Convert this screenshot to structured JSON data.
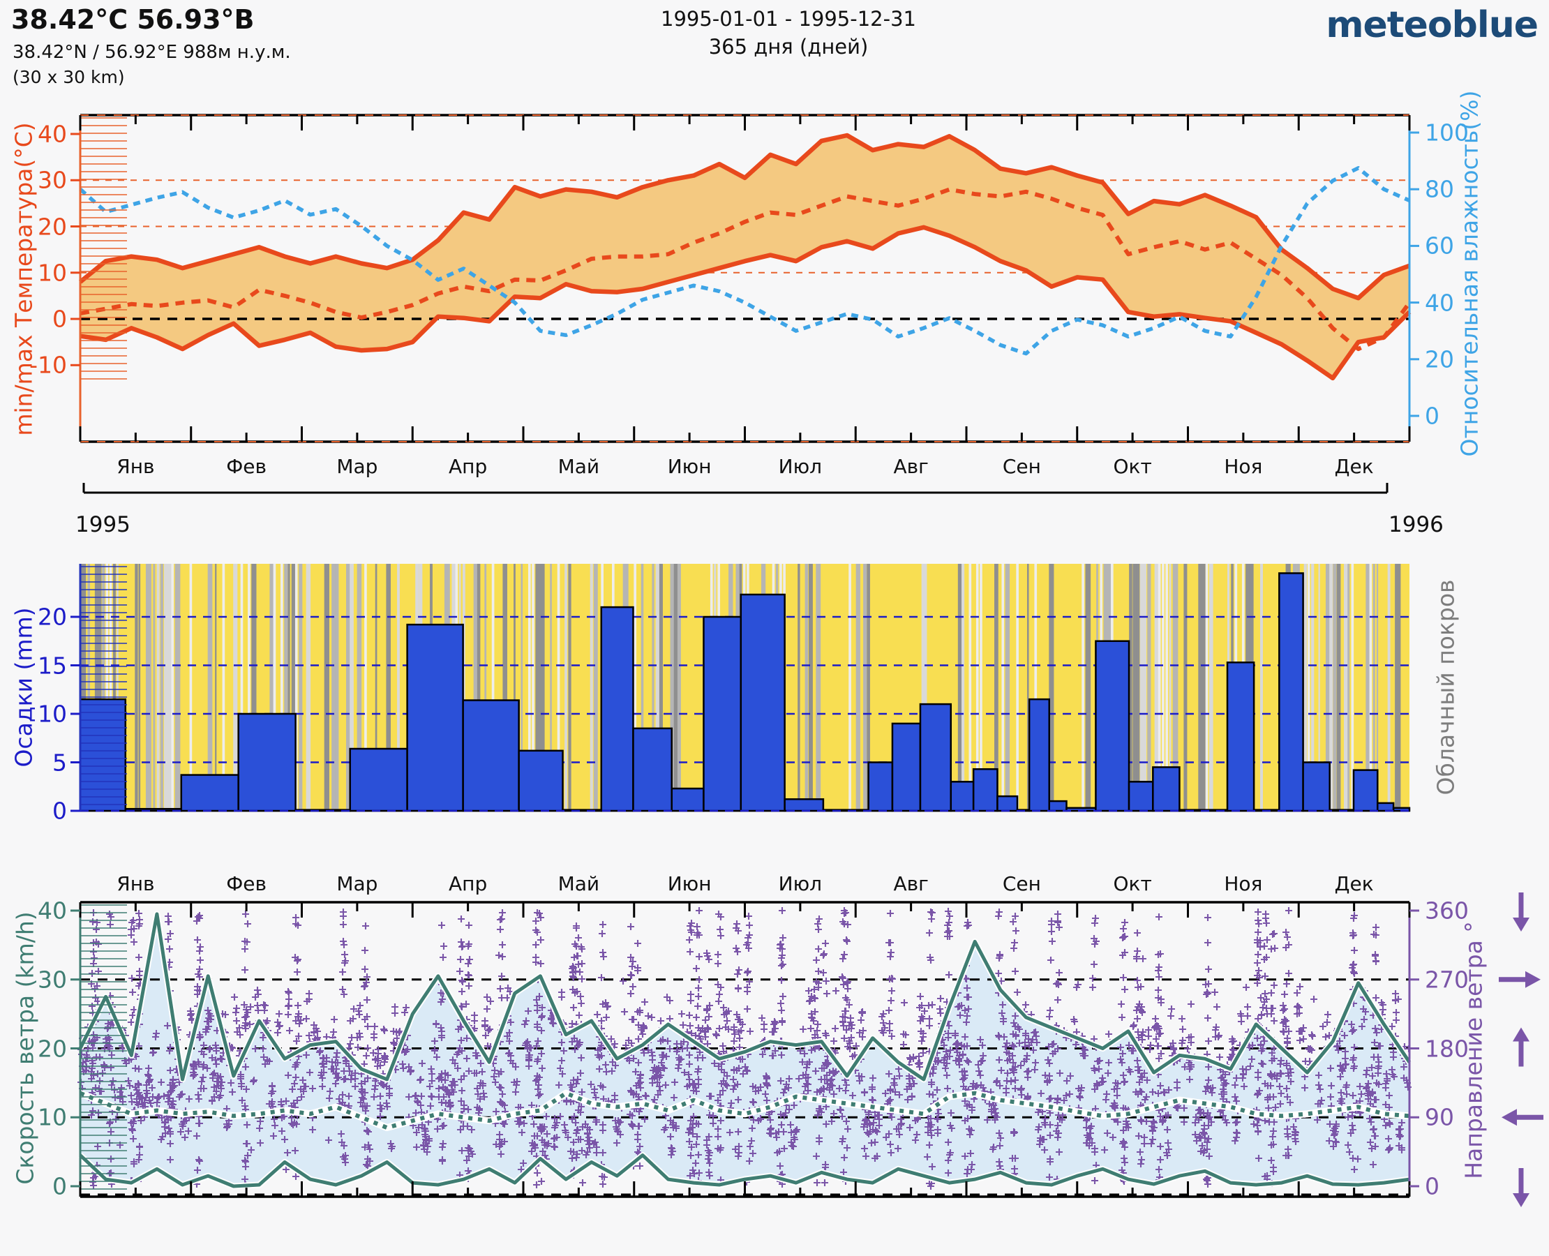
{
  "header": {
    "title": "38.42°С 56.93°В",
    "subtitle": "38.42°N / 56.92°E   988м н.у.м.",
    "area": "(30 x 30 km)",
    "period": "1995-01-01 - 1995-12-31",
    "duration": "365 дня (дней)",
    "logo": "meteoblue"
  },
  "years": {
    "start": "1995",
    "end": "1996"
  },
  "months": [
    "Янв",
    "Фев",
    "Мар",
    "Апр",
    "Май",
    "Июн",
    "Июл",
    "Авг",
    "Сен",
    "Окт",
    "Ноя",
    "Дек"
  ],
  "colors": {
    "page_bg": "#f7f7f8",
    "temp_line": "#e8491c",
    "temp_grid": "#e8622c",
    "temp_fill": "#f4c981",
    "humidity": "#3ea4e6",
    "precip_bar": "#2b50d8",
    "precip_axis": "#1c1cc8",
    "cloud_label": "#7d7d7d",
    "cloud_bg_yellow": "#f8de52",
    "wind": "#3f7d72",
    "wind_fill": "#daeaf6",
    "direction_purple": "#7a55a8",
    "logo_blue": "#1d4b78",
    "black": "#000000"
  },
  "chart_data": [
    {
      "type": "area",
      "name": "temperature-and-humidity",
      "ylabel": "min/max Температура(°C)",
      "yticks": [
        40,
        30,
        20,
        10,
        0,
        -10
      ],
      "ylim": [
        -26,
        44
      ],
      "y2label": "Относительная влажность(%)",
      "y2ticks": [
        100,
        80,
        60,
        40,
        20,
        0
      ],
      "y2lim": [
        0,
        100
      ],
      "x_unit": "week of 1995",
      "gridlines": {
        "orange_dashed_at": [
          30,
          20,
          10
        ],
        "black_dashed_at": [
          0
        ]
      },
      "series": [
        {
          "name": "t_max_weekly_C",
          "values": [
            8,
            12.5,
            13.5,
            12.8,
            11,
            12.5,
            14,
            15.5,
            13.5,
            12,
            13.5,
            12,
            11,
            12.8,
            17,
            23,
            21.5,
            28.5,
            26.5,
            28,
            27.5,
            26.3,
            28.5,
            30,
            31,
            33.5,
            30.5,
            35.5,
            33.5,
            38.5,
            39.7,
            36.5,
            37.8,
            37.2,
            39.5,
            36.5,
            32.5,
            31.5,
            32.8,
            31,
            29.5,
            22.7,
            25.5,
            24.8,
            26.8,
            24.5,
            22,
            15,
            11,
            6.5,
            4.5,
            9.5,
            11.5
          ]
        },
        {
          "name": "t_mean_weekly_C",
          "values": [
            1.2,
            2.2,
            3.2,
            2.8,
            3.5,
            4,
            2.5,
            6.3,
            5,
            3.5,
            1.5,
            0.3,
            1.5,
            3,
            5.5,
            7,
            6,
            8.5,
            8.3,
            10.5,
            13,
            13.5,
            13.5,
            14,
            16.5,
            18.5,
            21,
            23,
            22.5,
            24.5,
            26.5,
            25.5,
            24.5,
            26,
            28,
            27,
            26.5,
            27.5,
            26,
            24,
            22.5,
            14,
            15.5,
            16.8,
            15,
            16.5,
            13,
            9.5,
            4.5,
            -2,
            -6.5,
            -4,
            3.5
          ]
        },
        {
          "name": "t_min_weekly_C",
          "values": [
            -3.7,
            -4.5,
            -2,
            -4,
            -6.5,
            -3.5,
            -1,
            -5.8,
            -4.5,
            -3,
            -6,
            -6.8,
            -6.5,
            -5,
            0.5,
            0.2,
            -0.5,
            4.8,
            4.5,
            7.5,
            6,
            5.8,
            6.5,
            8,
            9.5,
            11,
            12.5,
            13.8,
            12.5,
            15.5,
            16.8,
            15.2,
            18.5,
            19.8,
            18,
            15.5,
            12.5,
            10.5,
            7,
            9,
            8.5,
            1.5,
            0.5,
            1,
            0.2,
            -0.5,
            -3,
            -5.5,
            -9,
            -12.8,
            -5,
            -4,
            1.5
          ]
        },
        {
          "name": "rel_humidity_weekly_pct",
          "values": [
            80,
            72,
            74.5,
            77,
            79,
            73.5,
            70,
            72.5,
            76,
            71,
            73,
            67,
            60,
            55,
            48,
            52,
            46,
            40,
            30,
            28.5,
            32,
            36,
            41,
            43.5,
            46,
            44,
            40,
            35,
            30,
            33,
            36,
            34,
            28,
            31,
            34.5,
            30,
            25,
            22,
            30,
            34,
            32,
            28,
            31,
            35,
            30,
            28,
            42,
            60,
            75,
            83,
            87.5,
            80,
            76
          ]
        }
      ]
    },
    {
      "type": "bar",
      "name": "precipitation-and-cloud-cover",
      "ylabel": "Осадки (mm)",
      "yticks": [
        20,
        15,
        10,
        5,
        0
      ],
      "ylim": [
        0,
        25.5
      ],
      "y2label": "Облачный покров",
      "bars_x0_x1_mm": [
        [
          0.0,
          0.034,
          11.5
        ],
        [
          0.034,
          0.076,
          0.2
        ],
        [
          0.076,
          0.119,
          3.7
        ],
        [
          0.119,
          0.162,
          10.0
        ],
        [
          0.162,
          0.203,
          0.1
        ],
        [
          0.203,
          0.246,
          6.4
        ],
        [
          0.246,
          0.288,
          19.2
        ],
        [
          0.288,
          0.33,
          11.4
        ],
        [
          0.33,
          0.363,
          6.2
        ],
        [
          0.363,
          0.392,
          0.1
        ],
        [
          0.392,
          0.416,
          21.0
        ],
        [
          0.416,
          0.445,
          8.5
        ],
        [
          0.445,
          0.469,
          2.3
        ],
        [
          0.469,
          0.497,
          20.0
        ],
        [
          0.497,
          0.53,
          22.3
        ],
        [
          0.53,
          0.559,
          1.2
        ],
        [
          0.559,
          0.593,
          0.1
        ],
        [
          0.593,
          0.611,
          5.0
        ],
        [
          0.611,
          0.632,
          9.0
        ],
        [
          0.632,
          0.655,
          11.0
        ],
        [
          0.655,
          0.672,
          3.0
        ],
        [
          0.672,
          0.69,
          4.3
        ],
        [
          0.69,
          0.705,
          1.5
        ],
        [
          0.705,
          0.714,
          0.1
        ],
        [
          0.714,
          0.729,
          11.5
        ],
        [
          0.729,
          0.742,
          1.0
        ],
        [
          0.742,
          0.764,
          0.3
        ],
        [
          0.764,
          0.789,
          17.5
        ],
        [
          0.789,
          0.807,
          3.0
        ],
        [
          0.807,
          0.827,
          4.5
        ],
        [
          0.827,
          0.863,
          0.1
        ],
        [
          0.863,
          0.883,
          15.3
        ],
        [
          0.883,
          0.902,
          0.1
        ],
        [
          0.902,
          0.92,
          24.5
        ],
        [
          0.92,
          0.94,
          5.0
        ],
        [
          0.94,
          0.958,
          0.1
        ],
        [
          0.958,
          0.976,
          4.2
        ],
        [
          0.976,
          0.988,
          0.8
        ],
        [
          0.988,
          1.0,
          0.3
        ]
      ],
      "cloud_cover": {
        "note": "hourly cloud-cover stripes, procedural approximation of density per month",
        "monthly_density": [
          0.55,
          0.5,
          0.52,
          0.48,
          0.42,
          0.38,
          0.32,
          0.1,
          0.13,
          0.38,
          0.42,
          0.55
        ],
        "stripe_grays": [
          "#8f8f8f",
          "#b5b5b5",
          "#d9d9d9",
          "#ededed"
        ],
        "seed": 7
      }
    },
    {
      "type": "line+scatter",
      "name": "wind-speed-and-direction",
      "ylabel": "Скорость ветра (km/h)",
      "yticks": [
        40,
        30,
        20,
        10,
        0
      ],
      "ylim": [
        0,
        42
      ],
      "y2label": "Направление ветра °",
      "y2ticks": [
        360,
        270,
        180,
        90,
        0
      ],
      "y2lim": [
        0,
        360
      ],
      "gridlines": {
        "black_dashed_at": [
          30,
          20,
          10,
          0
        ]
      },
      "series": [
        {
          "name": "wind_max_weekly_kmh",
          "values": [
            20,
            27.5,
            19,
            39.5,
            15.5,
            30.5,
            16,
            24,
            18.5,
            20.5,
            21,
            17,
            15.5,
            25,
            30.5,
            24,
            18,
            28,
            30.5,
            22,
            24,
            18.5,
            20.5,
            23.5,
            21,
            18.5,
            19.5,
            21,
            20.5,
            21,
            16,
            21.5,
            18,
            15.5,
            26,
            35.5,
            28.5,
            24.5,
            23,
            21.5,
            20,
            22.5,
            16.5,
            19,
            18.5,
            17,
            23.5,
            20,
            16.5,
            21,
            29.5,
            23.5,
            18
          ]
        },
        {
          "name": "wind_mean_weekly_kmh",
          "values": [
            13.5,
            12,
            10.5,
            11,
            10.5,
            10.8,
            10.2,
            10.5,
            11,
            10.5,
            11.5,
            10,
            8.5,
            9.5,
            10.5,
            10,
            9.5,
            10.5,
            11,
            13.5,
            12,
            11.5,
            12,
            11,
            12.5,
            11,
            10.5,
            11.5,
            13,
            12.5,
            12,
            11.5,
            11,
            10.5,
            13,
            13.5,
            12.5,
            12,
            11.5,
            10.8,
            10.2,
            10.5,
            11.5,
            12.5,
            12,
            11.5,
            10.5,
            10.2,
            10.5,
            11,
            11.5,
            10.5,
            10.2
          ]
        },
        {
          "name": "wind_min_weekly_kmh",
          "values": [
            4.5,
            1,
            0.5,
            2.5,
            0.2,
            1.5,
            0,
            0.2,
            3.5,
            1,
            0.2,
            1.5,
            3.5,
            0.5,
            0.2,
            1,
            2.5,
            0.5,
            4,
            1,
            3.5,
            1.5,
            4.5,
            1,
            0.5,
            0.2,
            1,
            1.5,
            0.5,
            2,
            1,
            0.5,
            2.5,
            1.5,
            0.5,
            1,
            2,
            0.5,
            0.2,
            1.5,
            2.5,
            1,
            0.3,
            1.5,
            2.2,
            0.5,
            0.2,
            0.5,
            1.5,
            0.3,
            0.2,
            0.5,
            1
          ]
        }
      ],
      "direction_scatter": {
        "note": "hourly wind direction plus-markers, procedural approximation",
        "marker": "+",
        "seed": 11,
        "points_per_day_min": 3,
        "points_per_day_max": 12,
        "column_day_probability": 0.16
      },
      "direction_arrows": [
        {
          "at_deg": 360,
          "arrow": "down"
        },
        {
          "at_deg": 270,
          "arrow": "right"
        },
        {
          "at_deg": 180,
          "arrow": "up"
        },
        {
          "at_deg": 90,
          "arrow": "left"
        },
        {
          "at_deg": 0,
          "arrow": "down"
        }
      ]
    }
  ]
}
